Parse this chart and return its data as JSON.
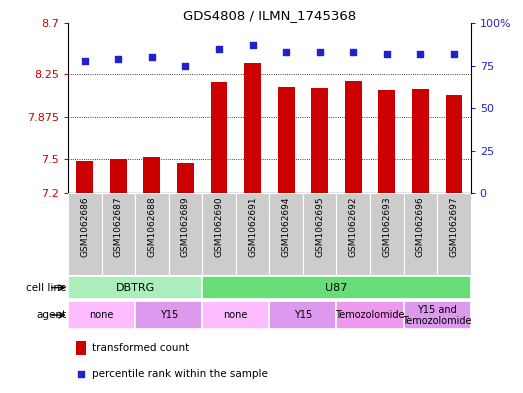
{
  "title": "GDS4808 / ILMN_1745368",
  "samples": [
    "GSM1062686",
    "GSM1062687",
    "GSM1062688",
    "GSM1062689",
    "GSM1062690",
    "GSM1062691",
    "GSM1062694",
    "GSM1062695",
    "GSM1062692",
    "GSM1062693",
    "GSM1062696",
    "GSM1062697"
  ],
  "bar_values": [
    7.48,
    7.5,
    7.52,
    7.47,
    8.18,
    8.35,
    8.14,
    8.13,
    8.19,
    8.11,
    8.12,
    8.07
  ],
  "dot_values": [
    78,
    79,
    80,
    75,
    85,
    87,
    83,
    83,
    83,
    82,
    82,
    82
  ],
  "ylim_left": [
    7.2,
    8.7
  ],
  "ylim_right": [
    0,
    100
  ],
  "yticks_left": [
    7.2,
    7.5,
    7.875,
    8.25,
    8.7
  ],
  "yticks_right": [
    0,
    25,
    50,
    75,
    100
  ],
  "ytick_labels_left": [
    "7.2",
    "7.5",
    "7.875",
    "8.25",
    "8.7"
  ],
  "ytick_labels_right": [
    "0",
    "25",
    "50",
    "75",
    "100%"
  ],
  "bar_color": "#cc0000",
  "dot_color": "#2222cc",
  "cell_line_groups": [
    {
      "label": "DBTRG",
      "start": 0,
      "end": 4,
      "color": "#aaeebb"
    },
    {
      "label": "U87",
      "start": 4,
      "end": 12,
      "color": "#66dd77"
    }
  ],
  "agent_groups": [
    {
      "label": "none",
      "start": 0,
      "end": 2,
      "color": "#ffbbff"
    },
    {
      "label": "Y15",
      "start": 2,
      "end": 4,
      "color": "#dd99ee"
    },
    {
      "label": "none",
      "start": 4,
      "end": 6,
      "color": "#ffbbff"
    },
    {
      "label": "Y15",
      "start": 6,
      "end": 8,
      "color": "#dd99ee"
    },
    {
      "label": "Temozolomide",
      "start": 8,
      "end": 10,
      "color": "#ee99ee"
    },
    {
      "label": "Y15 and\nTemozolomide",
      "start": 10,
      "end": 12,
      "color": "#dd99ee"
    }
  ],
  "legend_bar_label": "transformed count",
  "legend_dot_label": "percentile rank within the sample",
  "bar_width": 0.5,
  "left_label_color": "#cc0000",
  "right_label_color": "#2222cc",
  "sample_label_fontsize": 6.5,
  "tick_fontsize": 8
}
